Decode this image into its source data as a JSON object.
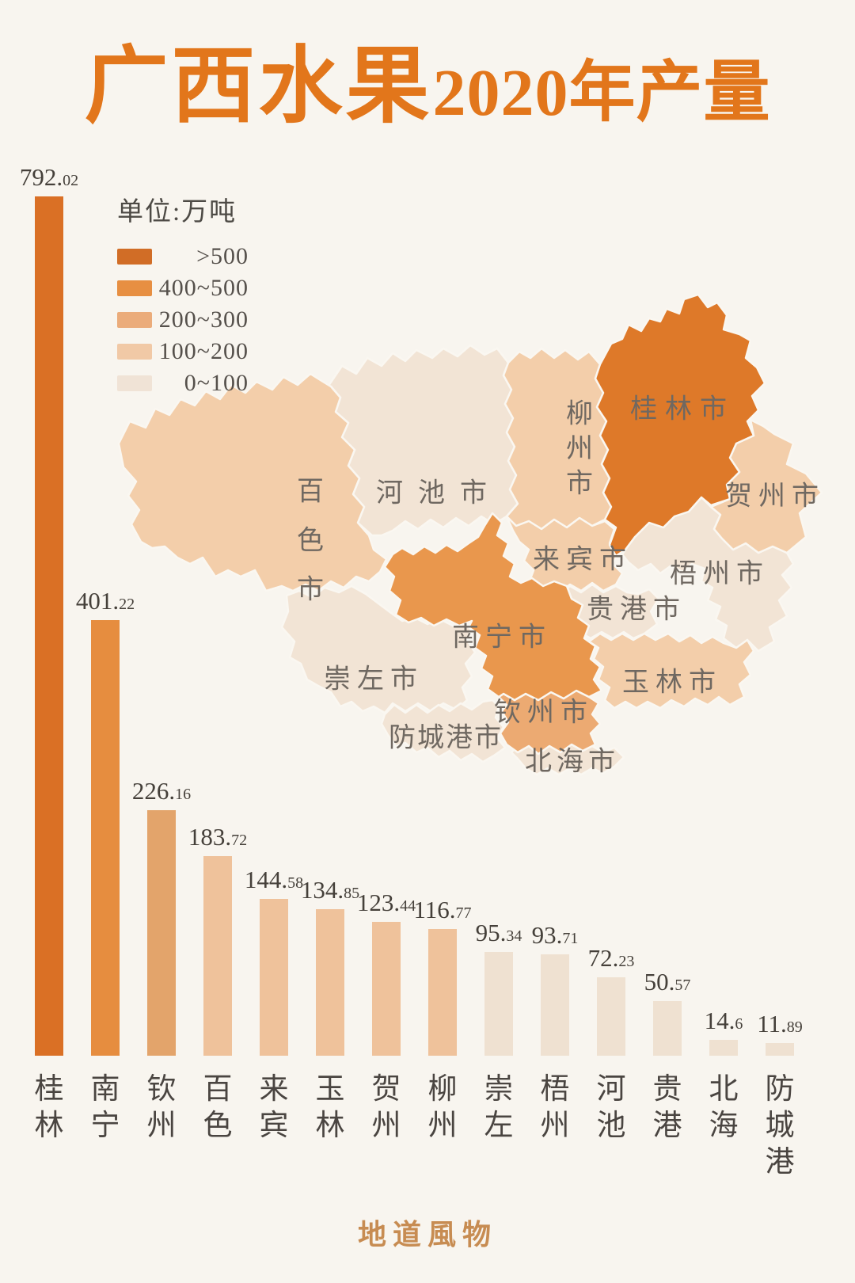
{
  "page": {
    "background": "#F8F5EF"
  },
  "title": {
    "main": "广西水果",
    "suffix": "2020年产量",
    "color": "#E2761B"
  },
  "legend": {
    "title": "单位:万吨",
    "items": [
      {
        "label": ">500",
        "key": "gt500"
      },
      {
        "label": "400~500",
        "key": "c400"
      },
      {
        "label": "200~300",
        "key": "c200"
      },
      {
        "label": "100~200",
        "key": "c100"
      },
      {
        "label": "0~100",
        "key": "c0"
      }
    ]
  },
  "palette": {
    "legend": {
      "gt500": "#D16D26",
      "c400": "#E78F42",
      "c200": "#EBAC7B",
      "c100": "#F1C9A6",
      "c0": "#F0E3D6"
    },
    "map": {
      "gt500": "#DE7929",
      "c400": "#E9974D",
      "c200": "#ECAA72",
      "c100": "#F3CEAA",
      "c0": "#F2E4D5"
    },
    "bar": {
      "gt500": "#DA7025",
      "c400": "#E68D3F",
      "c200": "#E3A46B",
      "c100": "#EFC29B",
      "c0": "#EFE1D1"
    }
  },
  "map": {
    "regions": [
      {
        "id": "hechi",
        "name": "河池市",
        "category": "c0"
      },
      {
        "id": "baise",
        "name": "百色市",
        "category": "c100"
      },
      {
        "id": "chongzuo",
        "name": "崇左市",
        "category": "c0"
      },
      {
        "id": "wuzhou",
        "name": "梧州市",
        "category": "c0"
      },
      {
        "id": "guigang",
        "name": "贵港市",
        "category": "c0"
      },
      {
        "id": "fangchenggang",
        "name": "防城港市",
        "category": "c0"
      },
      {
        "id": "beihai",
        "name": "北海市",
        "category": "c0"
      },
      {
        "id": "liuzhou",
        "name": "柳州市",
        "category": "c100"
      },
      {
        "id": "laibin",
        "name": "来宾市",
        "category": "c100"
      },
      {
        "id": "hezhou",
        "name": "贺州市",
        "category": "c100"
      },
      {
        "id": "yulin",
        "name": "玉林市",
        "category": "c100"
      },
      {
        "id": "qinzhou",
        "name": "钦州市",
        "category": "c200"
      },
      {
        "id": "nanning",
        "name": "南宁市",
        "category": "c400"
      },
      {
        "id": "guilin",
        "name": "桂林市",
        "category": "gt500"
      }
    ]
  },
  "chart_data": {
    "type": "bar",
    "title": "广西水果2020年产量",
    "unit": "万吨",
    "categories": [
      "桂林",
      "南宁",
      "钦州",
      "百色",
      "来宾",
      "玉林",
      "贺州",
      "柳州",
      "崇左",
      "梧州",
      "河池",
      "贵港",
      "北海",
      "防城港"
    ],
    "values": [
      792.02,
      401.22,
      226.16,
      183.72,
      144.58,
      134.85,
      123.44,
      116.77,
      95.34,
      93.71,
      72.23,
      50.57,
      14.6,
      11.89
    ],
    "ylim": [
      0,
      800
    ],
    "grid": false,
    "legend_bins": [
      ">500",
      "400~500",
      "200~300",
      "100~200",
      "0~100"
    ],
    "color_by": "value bin"
  },
  "footer": {
    "brand": "地道風物"
  }
}
